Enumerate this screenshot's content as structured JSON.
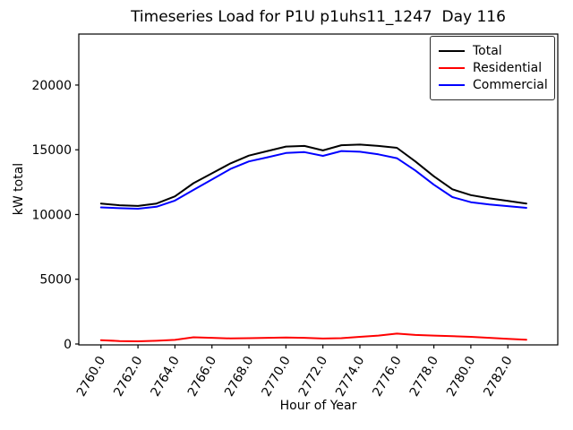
{
  "chart_data": {
    "type": "line",
    "title": "Timeseries Load for P1U p1uhs11_1247  Day 116",
    "xlabel": "Hour of Year",
    "ylabel": "kW total",
    "x": [
      2760,
      2761,
      2762,
      2763,
      2764,
      2765,
      2766,
      2767,
      2768,
      2769,
      2770,
      2771,
      2772,
      2773,
      2774,
      2775,
      2776,
      2777,
      2778,
      2779,
      2780,
      2781,
      2782,
      2783
    ],
    "series": [
      {
        "name": "Total",
        "color": "#000000",
        "values": [
          10850,
          10720,
          10660,
          10850,
          11400,
          12420,
          13180,
          13950,
          14550,
          14900,
          15250,
          15300,
          14950,
          15350,
          15400,
          15300,
          15150,
          14100,
          12950,
          11950,
          11500,
          11250,
          11050,
          10850
        ]
      },
      {
        "name": "Residential",
        "color": "#ff0000",
        "values": [
          300,
          230,
          210,
          250,
          320,
          520,
          480,
          430,
          450,
          480,
          500,
          480,
          420,
          450,
          550,
          650,
          800,
          700,
          650,
          600,
          550,
          480,
          400,
          330
        ]
      },
      {
        "name": "Commercial",
        "color": "#0000ff",
        "values": [
          10550,
          10490,
          10450,
          10600,
          11080,
          11900,
          12700,
          13520,
          14100,
          14420,
          14750,
          14820,
          14530,
          14900,
          14850,
          14650,
          14350,
          13400,
          12300,
          11350,
          10950,
          10770,
          10650,
          10520
        ]
      }
    ],
    "xticks": [
      2760,
      2762,
      2764,
      2766,
      2768,
      2770,
      2772,
      2774,
      2776,
      2778,
      2780,
      2782
    ],
    "xtick_labels": [
      "2760.0",
      "2762.0",
      "2764.0",
      "2766.0",
      "2768.0",
      "2770.0",
      "2772.0",
      "2774.0",
      "2776.0",
      "2778.0",
      "2780.0",
      "2782.0"
    ],
    "yticks": [
      0,
      5000,
      10000,
      15000,
      20000
    ],
    "ytick_labels": [
      "0",
      "5000",
      "10000",
      "15000",
      "20000"
    ],
    "xlim": [
      2758.8,
      2784.7
    ],
    "ylim": [
      -70,
      23940
    ],
    "grid": false,
    "legend_position": "upper right",
    "axis_color": "#000000"
  }
}
